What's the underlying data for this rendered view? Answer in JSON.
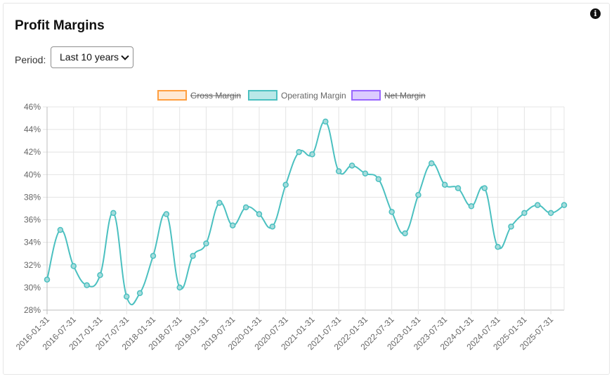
{
  "header": {
    "title": "Profit Margins"
  },
  "icons": {
    "info": "info-icon"
  },
  "period": {
    "label": "Period:",
    "selected": "Last 10 years"
  },
  "legend": [
    {
      "name": "Gross Margin",
      "hidden": true,
      "stroke": "#ff9f40",
      "fill": "#ffe9d4"
    },
    {
      "name": "Operating Margin",
      "hidden": false,
      "stroke": "#4bc0c0",
      "fill": "#b9e8e8"
    },
    {
      "name": "Net Margin",
      "hidden": true,
      "stroke": "#9966ff",
      "fill": "#dccbff"
    }
  ],
  "chart_data": {
    "type": "line",
    "title": "",
    "xlabel": "",
    "ylabel": "",
    "ylim": [
      28,
      46
    ],
    "y_ticks": [
      "28%",
      "30%",
      "32%",
      "34%",
      "36%",
      "38%",
      "40%",
      "42%",
      "44%",
      "46%"
    ],
    "x_ticks": [
      "2016-01-31",
      "2016-07-31",
      "2017-01-31",
      "2017-07-31",
      "2018-01-31",
      "2018-07-31",
      "2019-01-31",
      "2019-07-31",
      "2020-01-31",
      "2020-07-31",
      "2021-01-31",
      "2021-07-31",
      "2022-01-31",
      "2022-07-31",
      "2023-01-31",
      "2023-07-31",
      "2024-01-31",
      "2024-07-31",
      "2025-01-31",
      "2025-07-31"
    ],
    "grid": true,
    "legend_position": "top",
    "series": [
      {
        "name": "Operating Margin",
        "color": "#4bc0c0",
        "values": [
          30.7,
          35.1,
          31.9,
          30.2,
          31.1,
          36.6,
          29.2,
          29.5,
          32.8,
          36.5,
          30.0,
          32.8,
          33.9,
          37.5,
          35.5,
          37.1,
          36.5,
          35.4,
          39.1,
          42.0,
          41.8,
          44.7,
          40.3,
          40.8,
          40.1,
          39.6,
          36.7,
          34.8,
          38.2,
          41.0,
          39.1,
          38.8,
          37.2,
          38.8,
          33.6,
          35.4,
          36.6,
          37.3,
          36.6,
          37.3
        ]
      }
    ]
  }
}
